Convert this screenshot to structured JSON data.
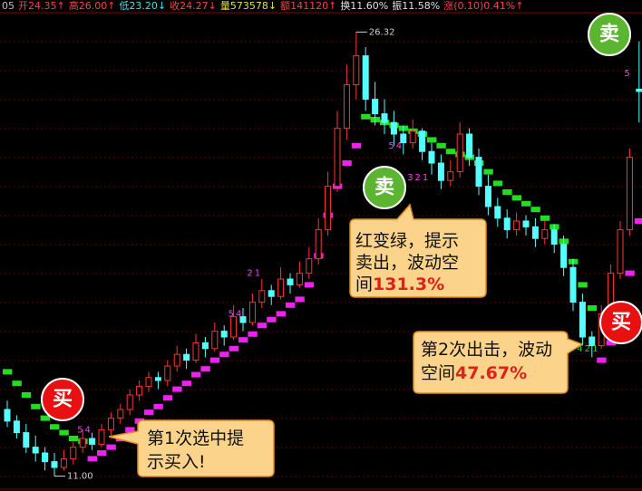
{
  "header": {
    "items": [
      {
        "text": "05",
        "color": "#c0c0c0"
      },
      {
        "text": "开24.35↑",
        "color": "#ff4040"
      },
      {
        "text": "高26.00↑",
        "color": "#ff4040"
      },
      {
        "text": "低23.20↓",
        "color": "#40e0e0"
      },
      {
        "text": "收24.27↓",
        "color": "#ff4040"
      },
      {
        "text": "量573578↓",
        "color": "#e0e040"
      },
      {
        "text": "额141120↑",
        "color": "#ff4040"
      },
      {
        "text": "换11.60%",
        "color": "#e0e0e0"
      },
      {
        "text": "振11.58%",
        "color": "#e0e0e0"
      },
      {
        "text": "涨(0.10)0.41%↑",
        "color": "#ff4040"
      }
    ]
  },
  "chart_data": {
    "type": "candlestick",
    "ylim": [
      10.8,
      26.8
    ],
    "up_color": "#ff3232",
    "down_color": "#54ffff",
    "ohlc": [
      [
        13.3,
        13.6,
        12.7,
        12.9
      ],
      [
        12.9,
        13.1,
        12.3,
        12.5
      ],
      [
        12.5,
        12.8,
        11.8,
        12.0
      ],
      [
        12.0,
        12.4,
        11.5,
        11.8
      ],
      [
        11.8,
        12.0,
        11.2,
        11.5
      ],
      [
        11.5,
        11.8,
        11.0,
        11.3
      ],
      [
        11.3,
        11.9,
        11.2,
        11.6
      ],
      [
        11.6,
        12.2,
        11.4,
        12.0
      ],
      [
        12.0,
        12.6,
        11.8,
        12.3
      ],
      [
        12.3,
        12.5,
        11.9,
        12.1
      ],
      [
        12.1,
        12.8,
        12.0,
        12.6
      ],
      [
        12.6,
        13.2,
        12.4,
        13.0
      ],
      [
        13.0,
        13.5,
        12.8,
        13.3
      ],
      [
        13.3,
        14.0,
        13.1,
        13.8
      ],
      [
        13.8,
        14.3,
        13.6,
        14.1
      ],
      [
        14.1,
        14.6,
        13.9,
        14.4
      ],
      [
        14.4,
        14.6,
        14.0,
        14.3
      ],
      [
        14.3,
        15.0,
        14.1,
        14.8
      ],
      [
        14.8,
        15.5,
        14.6,
        15.2
      ],
      [
        15.2,
        15.4,
        14.7,
        15.0
      ],
      [
        15.0,
        15.9,
        14.9,
        15.6
      ],
      [
        15.6,
        15.8,
        15.1,
        15.4
      ],
      [
        15.4,
        16.3,
        15.3,
        16.0
      ],
      [
        16.0,
        16.2,
        15.5,
        15.8
      ],
      [
        15.8,
        16.9,
        15.7,
        16.5
      ],
      [
        16.5,
        16.8,
        16.0,
        16.3
      ],
      [
        16.3,
        17.3,
        16.2,
        17.0
      ],
      [
        17.0,
        17.8,
        16.8,
        17.4
      ],
      [
        17.4,
        17.6,
        16.9,
        17.2
      ],
      [
        17.2,
        18.2,
        17.1,
        17.8
      ],
      [
        17.8,
        18.0,
        17.3,
        17.6
      ],
      [
        17.6,
        18.4,
        17.5,
        18.0
      ],
      [
        18.0,
        18.9,
        17.8,
        18.5
      ],
      [
        18.5,
        19.9,
        18.3,
        19.5
      ],
      [
        19.5,
        21.5,
        19.3,
        21.0
      ],
      [
        21.0,
        23.6,
        20.8,
        23.0
      ],
      [
        23.0,
        25.2,
        22.6,
        24.5
      ],
      [
        24.5,
        26.32,
        24.0,
        25.5
      ],
      [
        25.5,
        25.8,
        23.6,
        24.0
      ],
      [
        24.0,
        24.6,
        23.1,
        23.5
      ],
      [
        23.5,
        24.0,
        22.8,
        23.2
      ],
      [
        23.2,
        23.6,
        22.4,
        22.8
      ],
      [
        22.8,
        23.1,
        22.1,
        22.5
      ],
      [
        22.5,
        23.3,
        22.3,
        22.9
      ],
      [
        22.9,
        23.0,
        21.9,
        22.2
      ],
      [
        22.2,
        22.5,
        21.4,
        21.8
      ],
      [
        21.8,
        22.1,
        20.9,
        21.2
      ],
      [
        21.2,
        21.9,
        21.0,
        21.5
      ],
      [
        21.5,
        23.2,
        21.3,
        22.8
      ],
      [
        22.8,
        23.0,
        21.7,
        22.0
      ],
      [
        22.0,
        22.3,
        20.7,
        21.0
      ],
      [
        21.0,
        21.4,
        20.0,
        20.3
      ],
      [
        20.3,
        20.6,
        19.6,
        19.9
      ],
      [
        19.9,
        20.2,
        19.2,
        19.5
      ],
      [
        19.5,
        20.1,
        19.3,
        19.8
      ],
      [
        19.8,
        20.0,
        19.3,
        19.6
      ],
      [
        19.6,
        19.9,
        18.9,
        19.2
      ],
      [
        19.2,
        19.8,
        19.0,
        19.5
      ],
      [
        19.5,
        19.7,
        18.7,
        19.0
      ],
      [
        19.0,
        19.3,
        17.9,
        18.2
      ],
      [
        18.2,
        18.5,
        16.7,
        17.0
      ],
      [
        17.0,
        17.3,
        15.5,
        15.8
      ],
      [
        15.8,
        16.0,
        15.1,
        15.5
      ],
      [
        15.5,
        16.9,
        15.4,
        16.6
      ],
      [
        16.6,
        18.3,
        16.4,
        18.0
      ],
      [
        18.0,
        19.8,
        17.8,
        19.5
      ],
      [
        19.5,
        22.3,
        19.3,
        22.0
      ],
      [
        24.35,
        26.0,
        23.2,
        24.27
      ]
    ],
    "trend": [
      {
        "start": 0,
        "color": "#22dd22",
        "values": [
          14.6,
          14.2,
          13.8,
          13.4,
          13.0,
          12.7,
          12.5,
          12.3,
          12.2
        ]
      },
      {
        "start": 9,
        "color": "#ee22ee",
        "values": [
          11.6,
          11.8,
          12.0,
          12.3,
          12.6,
          12.9,
          13.2,
          13.4,
          13.7,
          14.0,
          14.2,
          14.5,
          14.7,
          15.0,
          15.2,
          15.4,
          15.7,
          15.9,
          16.2,
          16.4,
          16.6,
          16.9,
          17.1,
          17.6,
          18.6,
          20.0,
          21.0,
          21.8,
          22.4
        ]
      },
      {
        "start": 38,
        "color": "#22dd22",
        "values": [
          23.4,
          23.3,
          23.2,
          23.1,
          23.0,
          22.9,
          22.8,
          22.6,
          22.4,
          22.2,
          22.1,
          22.0,
          21.8,
          21.5,
          21.1,
          20.8,
          20.6,
          20.4,
          20.2,
          19.9,
          19.6,
          19.1,
          18.4,
          17.6,
          16.8
        ]
      },
      {
        "start": 63,
        "color": "#ee22ee",
        "values": [
          15.0,
          15.6,
          16.6,
          18.0,
          19.8
        ]
      }
    ],
    "high_label": {
      "index": 37,
      "value": 26.32,
      "label": "26.32"
    },
    "low_label": {
      "index": 5,
      "value": 11,
      "label": "11.00"
    },
    "count_labels": [
      {
        "index": 8,
        "price": 12.6,
        "text": "54",
        "color": "#ee44ee"
      },
      {
        "index": 24,
        "price": 16.6,
        "text": "54",
        "color": "#ee44ee"
      },
      {
        "index": 26,
        "price": 18.0,
        "text": "21",
        "color": "#ee44ee"
      },
      {
        "index": 41,
        "price": 22.4,
        "text": "54",
        "color": "#ee44ee"
      },
      {
        "index": 43,
        "price": 21.3,
        "text": "321",
        "color": "#ee44ee"
      },
      {
        "index": 61,
        "price": 15.4,
        "text": "421",
        "color": "#22dd22"
      },
      {
        "index": 66,
        "price": 24.9,
        "text": "5",
        "color": "#ee44ee"
      }
    ]
  },
  "annotations": {
    "sell_badge_top": "卖",
    "sell_badge_mid": "卖",
    "buy_badge_left": "买",
    "buy_badge_right": "买",
    "bubble_1": {
      "lines": [
        "红变绿，提示",
        "卖出，波动空",
        "间"
      ],
      "highlight": "131.3%"
    },
    "bubble_2": {
      "lines": [
        "第2次出击，波动",
        "空间"
      ],
      "highlight": "47.67%"
    },
    "bubble_3": {
      "lines": [
        "第1次选中提",
        "示买入!"
      ]
    }
  }
}
